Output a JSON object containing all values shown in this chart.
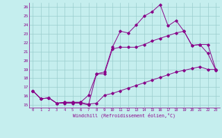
{
  "title": "",
  "xlabel": "Windchill (Refroidissement éolien,°C)",
  "ylabel": "",
  "xlim": [
    -0.5,
    23.5
  ],
  "ylim": [
    14.7,
    26.5
  ],
  "xticks": [
    0,
    1,
    2,
    3,
    4,
    5,
    6,
    7,
    8,
    9,
    10,
    11,
    12,
    13,
    14,
    15,
    16,
    17,
    18,
    19,
    20,
    21,
    22,
    23
  ],
  "yticks": [
    15,
    16,
    17,
    18,
    19,
    20,
    21,
    22,
    23,
    24,
    25,
    26
  ],
  "background_color": "#c5eeee",
  "line_color": "#880088",
  "grid_color": "#99cccc",
  "line1_x": [
    0,
    1,
    2,
    3,
    4,
    5,
    6,
    7,
    8,
    9,
    10,
    11,
    12,
    13,
    14,
    15,
    16,
    17,
    18,
    19,
    20,
    21,
    22,
    23
  ],
  "line1_y": [
    16.6,
    15.7,
    15.8,
    15.2,
    15.2,
    15.2,
    15.2,
    15.0,
    18.5,
    18.7,
    21.5,
    23.3,
    23.1,
    24.0,
    25.0,
    25.5,
    26.3,
    23.9,
    24.5,
    23.3,
    21.7,
    21.8,
    20.8,
    18.9
  ],
  "line2_x": [
    0,
    1,
    2,
    3,
    4,
    5,
    6,
    7,
    8,
    9,
    10,
    11,
    12,
    13,
    14,
    15,
    16,
    17,
    18,
    19,
    20,
    21,
    22,
    23
  ],
  "line2_y": [
    16.6,
    15.7,
    15.8,
    15.2,
    15.3,
    15.3,
    15.3,
    16.1,
    18.5,
    18.5,
    21.3,
    21.5,
    21.5,
    21.5,
    21.8,
    22.2,
    22.5,
    22.8,
    23.1,
    23.3,
    21.7,
    21.8,
    21.8,
    19.0
  ],
  "line3_x": [
    0,
    1,
    2,
    3,
    4,
    5,
    6,
    7,
    8,
    9,
    10,
    11,
    12,
    13,
    14,
    15,
    16,
    17,
    18,
    19,
    20,
    21,
    22,
    23
  ],
  "line3_y": [
    16.6,
    15.7,
    15.8,
    15.2,
    15.3,
    15.3,
    15.3,
    15.1,
    15.2,
    16.1,
    16.3,
    16.6,
    16.9,
    17.2,
    17.5,
    17.8,
    18.1,
    18.4,
    18.7,
    18.9,
    19.1,
    19.3,
    19.0,
    19.0
  ]
}
